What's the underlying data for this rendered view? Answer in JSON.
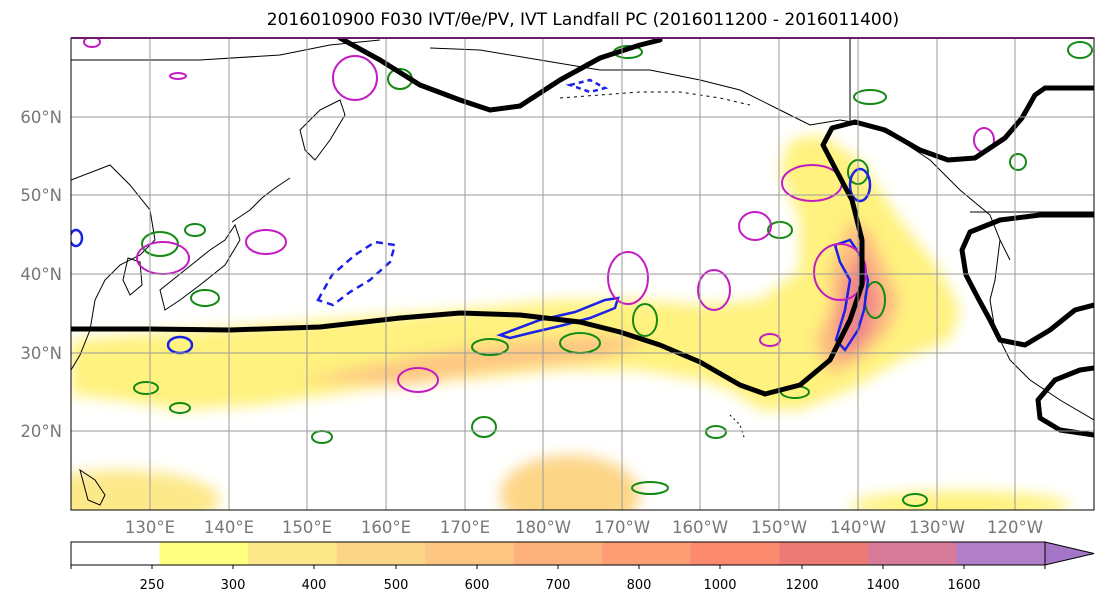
{
  "figure": {
    "title": "2016010900 F030 IVT/θe/PV, IVT Landfall PC (2016011200 - 2016011400)"
  },
  "map": {
    "projection": "equirectangular",
    "lon_extent_degE": [
      120,
      250
    ],
    "lat_extent_degN": [
      10,
      70
    ],
    "gridlines": true,
    "lat_labels": [
      "20°N",
      "30°N",
      "40°N",
      "50°N",
      "60°N"
    ],
    "lon_labels": [
      "130°E",
      "140°E",
      "150°E",
      "160°E",
      "170°E",
      "180°W",
      "170°W",
      "160°W",
      "150°W",
      "140°W",
      "130°W",
      "120°W"
    ],
    "contour_colors": {
      "jet_pv_black": "#000000",
      "theta_e_green": "#138a13",
      "pv_blue": "#1a22e8",
      "pv_magenta": "#c21cc2"
    }
  },
  "colorbar": {
    "labels": [
      "250",
      "300",
      "400",
      "500",
      "600",
      "700",
      "800",
      "1000",
      "1200",
      "1400",
      "1600"
    ],
    "colors": [
      "#ffffff",
      "#ffff80",
      "#fde98a",
      "#fdd587",
      "#fdc783",
      "#fdb27c",
      "#fd9d74",
      "#fb8a6e",
      "#ee7a75",
      "#d87a9a",
      "#b07fc6",
      "#a476c8"
    ],
    "extend": "max"
  }
}
